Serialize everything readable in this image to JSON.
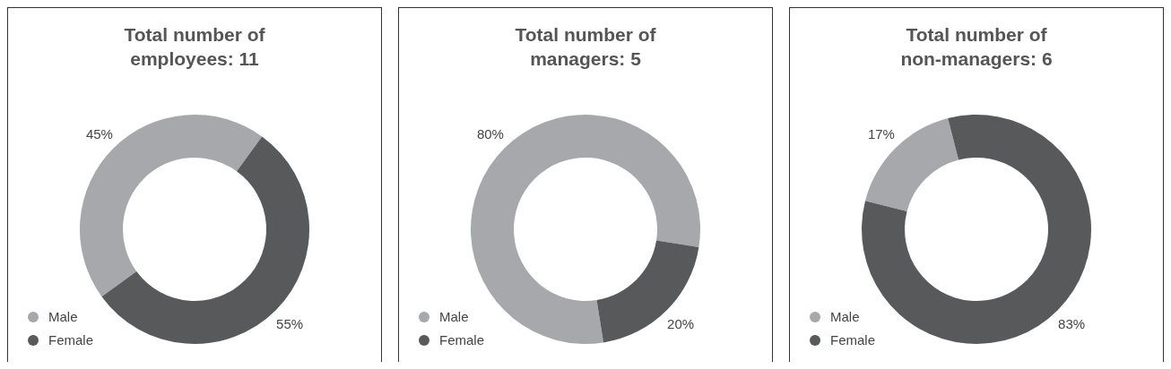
{
  "chart_data": [
    {
      "type": "donut",
      "title": "Total number of employees: 11",
      "categories": [
        "Male",
        "Female"
      ],
      "values": [
        45,
        55
      ],
      "colors": [
        "#a7a8ab",
        "#58595b"
      ],
      "value_labels": [
        "45%",
        "55%"
      ],
      "legend": "bottom left"
    },
    {
      "type": "donut",
      "title": "Total number of managers: 5",
      "categories": [
        "Male",
        "Female"
      ],
      "values": [
        80,
        20
      ],
      "colors": [
        "#a7a8ab",
        "#58595b"
      ],
      "value_labels": [
        "80%",
        "20%"
      ],
      "legend": "bottom left"
    },
    {
      "type": "donut",
      "title": "Total number of non-managers: 6",
      "categories": [
        "Male",
        "Female"
      ],
      "values": [
        17,
        83
      ],
      "colors": [
        "#a7a8ab",
        "#58595b"
      ],
      "value_labels": [
        "17%",
        "83%"
      ],
      "legend": "bottom left"
    }
  ]
}
